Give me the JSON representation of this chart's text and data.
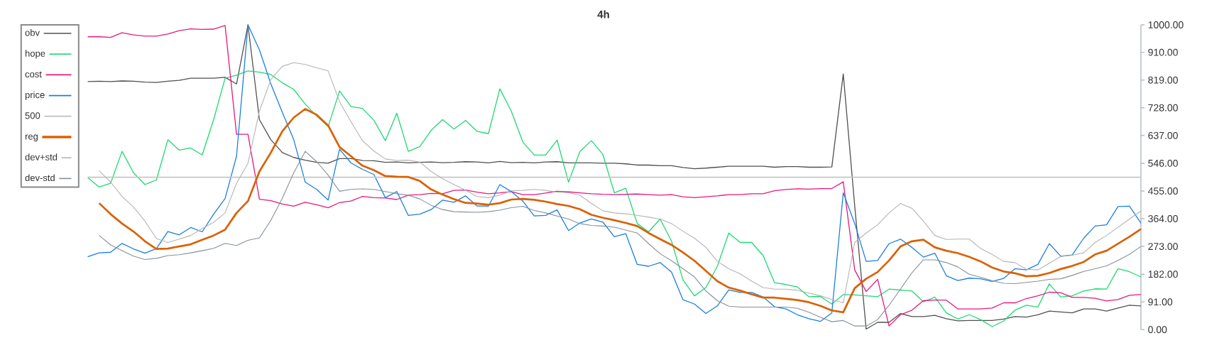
{
  "chart_data": {
    "type": "line",
    "title": "4h",
    "categories": [
      null,
      null,
      null,
      null,
      null,
      null,
      null,
      null,
      null,
      null,
      null,
      null,
      null,
      null,
      null,
      null,
      null,
      null,
      null,
      null,
      null,
      null,
      null,
      null,
      null,
      null,
      null,
      null,
      null,
      null,
      null,
      null,
      null,
      null,
      null,
      null,
      null,
      null,
      null,
      null,
      null,
      null,
      null,
      null,
      null,
      null,
      null,
      null,
      null,
      null,
      null,
      null,
      null,
      null,
      null,
      null,
      null,
      null,
      null,
      null,
      null,
      null,
      null,
      null,
      null,
      null,
      null,
      null,
      null,
      null,
      null,
      null,
      null,
      null,
      null,
      null,
      null,
      null,
      null,
      null,
      null,
      null,
      null,
      null,
      null,
      null,
      null,
      null,
      null,
      null,
      null,
      null,
      null
    ],
    "series": [
      {
        "name": "obv",
        "color": "#505050",
        "values": [
          814,
          815,
          814,
          816,
          815,
          812,
          811,
          815,
          818,
          825,
          825,
          825,
          828,
          806,
          1000,
          689,
          623,
          581,
          565,
          556,
          549,
          546,
          561,
          561,
          555,
          554,
          549,
          550,
          547,
          549,
          550,
          548,
          549,
          551,
          550,
          547,
          552,
          548,
          549,
          547,
          550,
          551,
          547,
          547,
          547,
          546,
          546,
          544,
          540,
          540,
          538,
          538,
          532,
          528,
          530,
          533,
          536,
          536,
          536,
          536,
          533,
          535,
          535,
          533,
          533,
          534,
          839,
          406,
          2,
          24,
          24,
          53,
          43,
          43,
          47,
          36,
          29,
          30,
          30,
          30,
          35,
          43,
          41,
          49,
          61,
          58,
          55,
          68,
          68,
          61,
          71,
          80,
          78
        ]
      },
      {
        "name": "hope",
        "color": "#1fd872",
        "values": [
          499,
          468,
          480,
          585,
          515,
          476,
          491,
          623,
          589,
          596,
          573,
          689,
          825,
          835,
          849,
          845,
          837,
          810,
          788,
          740,
          701,
          666,
          783,
          732,
          726,
          687,
          620,
          710,
          585,
          600,
          654,
          689,
          658,
          686,
          651,
          643,
          790,
          717,
          616,
          573,
          573,
          622,
          484,
          585,
          620,
          575,
          449,
          464,
          348,
          321,
          363,
          290,
          163,
          111,
          138,
          208,
          317,
          286,
          286,
          243,
          154,
          148,
          140,
          108,
          109,
          84,
          115,
          114,
          111,
          108,
          133,
          130,
          127,
          91,
          107,
          55,
          35,
          49,
          33,
          10,
          28,
          64,
          80,
          74,
          150,
          107,
          111,
          127,
          134,
          133,
          200,
          190,
          173
        ]
      },
      {
        "name": "cost",
        "color": "#e6197f",
        "values": [
          961,
          961,
          959,
          974,
          967,
          963,
          963,
          970,
          981,
          987,
          985,
          986,
          998,
          641,
          641,
          428,
          423,
          412,
          405,
          418,
          410,
          400,
          417,
          422,
          437,
          433,
          432,
          427,
          441,
          443,
          447,
          446,
          457,
          458,
          451,
          446,
          449,
          453,
          443,
          443,
          448,
          454,
          452,
          449,
          446,
          444,
          443,
          444,
          445,
          443,
          441,
          443,
          436,
          433,
          436,
          439,
          443,
          443,
          446,
          446,
          456,
          460,
          462,
          461,
          463,
          463,
          485,
          196,
          125,
          165,
          12,
          49,
          64,
          95,
          97,
          97,
          68,
          68,
          68,
          71,
          88,
          88,
          102,
          111,
          123,
          121,
          106,
          106,
          103,
          94,
          99,
          113,
          115
        ]
      },
      {
        "name": "price",
        "color": "#1c7fe0",
        "values": [
          239,
          252,
          254,
          283,
          265,
          251,
          266,
          322,
          311,
          335,
          321,
          379,
          430,
          569,
          1000,
          918,
          806,
          713,
          623,
          484,
          460,
          425,
          592,
          547,
          526,
          509,
          433,
          453,
          375,
          379,
          394,
          425,
          418,
          439,
          406,
          405,
          476,
          453,
          422,
          373,
          375,
          393,
          325,
          350,
          363,
          353,
          305,
          315,
          214,
          208,
          220,
          189,
          98,
          84,
          53,
          78,
          130,
          122,
          122,
          107,
          75,
          68,
          49,
          36,
          27,
          55,
          449,
          348,
          224,
          227,
          282,
          297,
          270,
          238,
          251,
          177,
          161,
          169,
          167,
          158,
          168,
          200,
          196,
          214,
          282,
          241,
          245,
          300,
          340,
          344,
          404,
          405,
          350
        ]
      },
      {
        "name": "500",
        "color": "#c6c6c6",
        "values": [
          500,
          500,
          500,
          500,
          500,
          500,
          500,
          500,
          500,
          500,
          500,
          500,
          500,
          500,
          500,
          500,
          500,
          500,
          500,
          500,
          500,
          500,
          500,
          500,
          500,
          500,
          500,
          500,
          500,
          500,
          500,
          500,
          500,
          500,
          500,
          500,
          500,
          500,
          500,
          500,
          500,
          500,
          500,
          500,
          500,
          500,
          500,
          500,
          500,
          500,
          500,
          500,
          500,
          500,
          500,
          500,
          500,
          500,
          500,
          500,
          500,
          500,
          500,
          500,
          500,
          500,
          500,
          500,
          500,
          500,
          500,
          500,
          500,
          500,
          500,
          500,
          500,
          500,
          500,
          500,
          500,
          500,
          500,
          500,
          500,
          500,
          500,
          500,
          500,
          500,
          500,
          500,
          500
        ]
      },
      {
        "name": "reg",
        "color": "#da6103",
        "values": [
          null,
          415,
          379,
          348,
          322,
          290,
          265,
          266,
          273,
          280,
          295,
          309,
          328,
          383,
          422,
          519,
          581,
          651,
          696,
          724,
          705,
          670,
          599,
          569,
          538,
          523,
          504,
          502,
          501,
          488,
          460,
          443,
          428,
          416,
          414,
          410,
          415,
          427,
          429,
          426,
          420,
          412,
          406,
          395,
          377,
          367,
          359,
          350,
          340,
          317,
          297,
          278,
          253,
          226,
          193,
          159,
          138,
          128,
          116,
          105,
          105,
          101,
          97,
          90,
          78,
          63,
          57,
          136,
          167,
          189,
          227,
          273,
          290,
          295,
          270,
          259,
          251,
          239,
          224,
          204,
          191,
          185,
          175,
          177,
          186,
          199,
          209,
          222,
          247,
          259,
          282,
          305,
          330
        ]
      },
      {
        "name": "dev+std",
        "color": "#b4b4b4",
        "values": [
          null,
          521,
          484,
          437,
          402,
          356,
          299,
          286,
          297,
          309,
          332,
          352,
          383,
          480,
          546,
          717,
          821,
          864,
          876,
          870,
          859,
          849,
          748,
          682,
          620,
          586,
          560,
          555,
          556,
          550,
          519,
          495,
          476,
          457,
          437,
          433,
          441,
          456,
          457,
          460,
          457,
          451,
          449,
          441,
          414,
          390,
          383,
          380,
          375,
          369,
          363,
          348,
          323,
          300,
          270,
          224,
          200,
          183,
          159,
          138,
          133,
          133,
          129,
          120,
          111,
          99,
          88,
          286,
          317,
          344,
          383,
          414,
          398,
          356,
          309,
          296,
          297,
          297,
          266,
          247,
          224,
          220,
          198,
          196,
          218,
          240,
          244,
          252,
          286,
          309,
          336,
          363,
          389
        ]
      },
      {
        "name": "dev-std",
        "color": "#86919a",
        "values": [
          null,
          309,
          278,
          259,
          241,
          230,
          234,
          243,
          246,
          252,
          259,
          267,
          283,
          276,
          293,
          301,
          359,
          431,
          515,
          585,
          551,
          507,
          454,
          460,
          462,
          460,
          453,
          446,
          441,
          429,
          408,
          394,
          387,
          386,
          385,
          387,
          392,
          400,
          405,
          391,
          383,
          373,
          363,
          348,
          342,
          340,
          336,
          327,
          317,
          282,
          249,
          226,
          200,
          173,
          127,
          95,
          77,
          74,
          74,
          74,
          74,
          74,
          70,
          57,
          41,
          26,
          30,
          12,
          12,
          33,
          80,
          133,
          187,
          229,
          229,
          220,
          206,
          182,
          172,
          161,
          152,
          151,
          155,
          159,
          165,
          167,
          178,
          191,
          200,
          209,
          227,
          247,
          273
        ]
      }
    ],
    "ylim": [
      0,
      1000
    ],
    "yticks": [
      {
        "value": 0,
        "label": "0.00"
      },
      {
        "value": 91,
        "label": "91.00"
      },
      {
        "value": 182,
        "label": "182.00"
      },
      {
        "value": 273,
        "label": "273.00"
      },
      {
        "value": 364,
        "label": "364.00"
      },
      {
        "value": 455,
        "label": "455.00"
      },
      {
        "value": 546,
        "label": "546.00"
      },
      {
        "value": 637,
        "label": "637.00"
      },
      {
        "value": 728,
        "label": "728.00"
      },
      {
        "value": 819,
        "label": "819.00"
      },
      {
        "value": 910,
        "label": "910.00"
      },
      {
        "value": 1000,
        "label": "1000.00"
      }
    ],
    "legend": "top left",
    "tick_labels": "y"
  }
}
